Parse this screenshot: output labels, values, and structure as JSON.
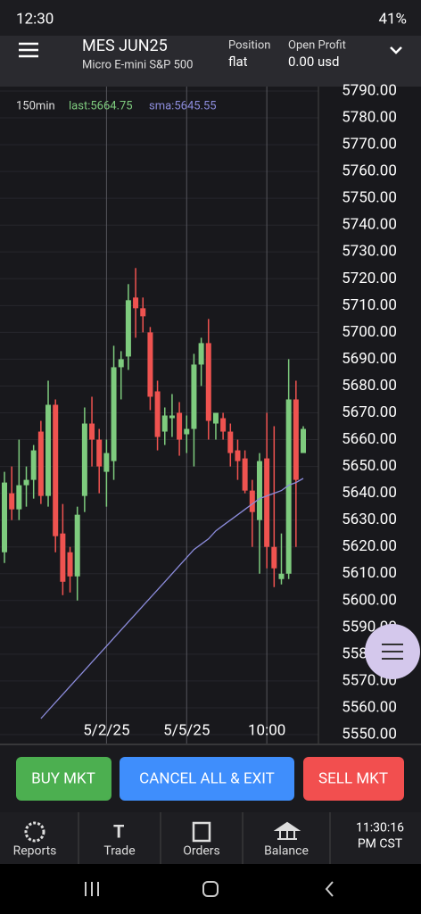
{
  "status_bar": {
    "time": "12:30",
    "battery": "41%"
  },
  "header": {
    "symbol": "MES JUN25",
    "description": "Micro E-mini S&P 500",
    "position_label": "Position",
    "position_value": "flat",
    "profit_label": "Open Profit",
    "profit_value": "0.00 usd"
  },
  "chart_data": {
    "type": "candlestick",
    "annotations": [
      "150min",
      "last:5664.75",
      "sma:5645.55"
    ],
    "categories": [
      null,
      null,
      null,
      null,
      null,
      null,
      null,
      null,
      null,
      null,
      null,
      null,
      null,
      null,
      "5/2/25",
      null,
      null,
      null,
      null,
      null,
      null,
      null,
      null,
      null,
      null,
      "5/5/25",
      null,
      null,
      null,
      null,
      null,
      null,
      null,
      null,
      null,
      null,
      "10:00",
      null,
      null,
      null,
      null,
      null
    ],
    "open": [
      5618,
      5640,
      5634,
      5643,
      5645,
      5663,
      5639,
      5673,
      5625,
      5618,
      5609,
      5639,
      5666,
      5660,
      5648,
      5652,
      5687,
      5691,
      5713,
      5709,
      5700,
      5678,
      5663,
      5668,
      5670,
      5662,
      5664,
      5688,
      5696,
      5666,
      5668,
      5663,
      5656,
      5653,
      5641,
      5630,
      5653,
      5620,
      5608,
      5610,
      5675,
      5655
    ],
    "high": [
      5648,
      5650,
      5660,
      5650,
      5658,
      5667,
      5682,
      5675,
      5636,
      5620,
      5635,
      5672,
      5676,
      5664,
      5660,
      5695,
      5693,
      5718,
      5724,
      5713,
      5702,
      5682,
      5672,
      5677,
      5674,
      5669,
      5692,
      5698,
      5705,
      5670,
      5670,
      5666,
      5660,
      5656,
      5645,
      5655,
      5670,
      5665,
      5625,
      5690,
      5682,
      5665
    ],
    "low": [
      5614,
      5630,
      5630,
      5635,
      5638,
      5636,
      5635,
      5618,
      5602,
      5603,
      5600,
      5633,
      5650,
      5640,
      5635,
      5645,
      5675,
      5686,
      5698,
      5700,
      5671,
      5656,
      5658,
      5661,
      5654,
      5655,
      5650,
      5680,
      5660,
      5660,
      5660,
      5650,
      5645,
      5640,
      5620,
      5610,
      5612,
      5605,
      5606,
      5608,
      5620,
      5656
    ],
    "close": [
      5644,
      5634,
      5643,
      5645,
      5656,
      5639,
      5673,
      5624,
      5607,
      5609,
      5632,
      5666,
      5660,
      5650,
      5655,
      5687,
      5690,
      5712,
      5709,
      5706,
      5676,
      5661,
      5669,
      5669,
      5660,
      5664,
      5688,
      5696,
      5667,
      5670,
      5663,
      5655,
      5652,
      5641,
      5633,
      5652,
      5620,
      5612,
      5610,
      5675,
      5645,
      5664
    ],
    "series": [
      {
        "name": "sma",
        "color": "#8c8cdc",
        "values": [
          null,
          null,
          null,
          null,
          null,
          5556,
          5559,
          5562,
          5565,
          5568,
          5571,
          5574,
          5577,
          5580,
          5583,
          5586,
          5589,
          5592,
          5595,
          5598,
          5601,
          5604,
          5607,
          5610,
          5613,
          5616,
          5619,
          5621,
          5623,
          5626,
          5628,
          5630,
          5632,
          5634,
          5636,
          5638,
          5639,
          5640,
          5641,
          5643,
          5644,
          5645.55
        ]
      }
    ],
    "up_color": "#7ecb7e",
    "down_color": "#ef5350",
    "ylim": [
      5546.67,
      5791.67
    ],
    "yticks": [
      {
        "value": 5790,
        "label": "5790.00"
      },
      {
        "value": 5780,
        "label": "5780.00"
      },
      {
        "value": 5770,
        "label": "5770.00"
      },
      {
        "value": 5760,
        "label": "5760.00"
      },
      {
        "value": 5750,
        "label": "5750.00"
      },
      {
        "value": 5740,
        "label": "5740.00"
      },
      {
        "value": 5730,
        "label": "5730.00"
      },
      {
        "value": 5720,
        "label": "5720.00"
      },
      {
        "value": 5710,
        "label": "5710.00"
      },
      {
        "value": 5700,
        "label": "5700.00"
      },
      {
        "value": 5690,
        "label": "5690.00"
      },
      {
        "value": 5680,
        "label": "5680.00"
      },
      {
        "value": 5670,
        "label": "5670.00"
      },
      {
        "value": 5660,
        "label": "5660.00"
      },
      {
        "value": 5650,
        "label": "5650.00"
      },
      {
        "value": 5640,
        "label": "5640.00"
      },
      {
        "value": 5630,
        "label": "5630.00"
      },
      {
        "value": 5620,
        "label": "5620.00"
      },
      {
        "value": 5610,
        "label": "5610.00"
      },
      {
        "value": 5600,
        "label": "5600.00"
      },
      {
        "value": 5590,
        "label": "5590.00"
      },
      {
        "value": 5580,
        "label": "5580.00"
      },
      {
        "value": 5570,
        "label": "5570.00"
      },
      {
        "value": 5560,
        "label": "5560.00"
      },
      {
        "value": 5550,
        "label": "5550.00"
      }
    ],
    "grid": true
  },
  "actions": {
    "buy": "BUY MKT",
    "cancel": "CANCEL ALL & EXIT",
    "sell": "SELL MKT"
  },
  "nav": {
    "items": [
      "Reports",
      "Trade",
      "Orders",
      "Balance"
    ],
    "clock_time": "11:30:16",
    "clock_zone": "PM CST"
  }
}
